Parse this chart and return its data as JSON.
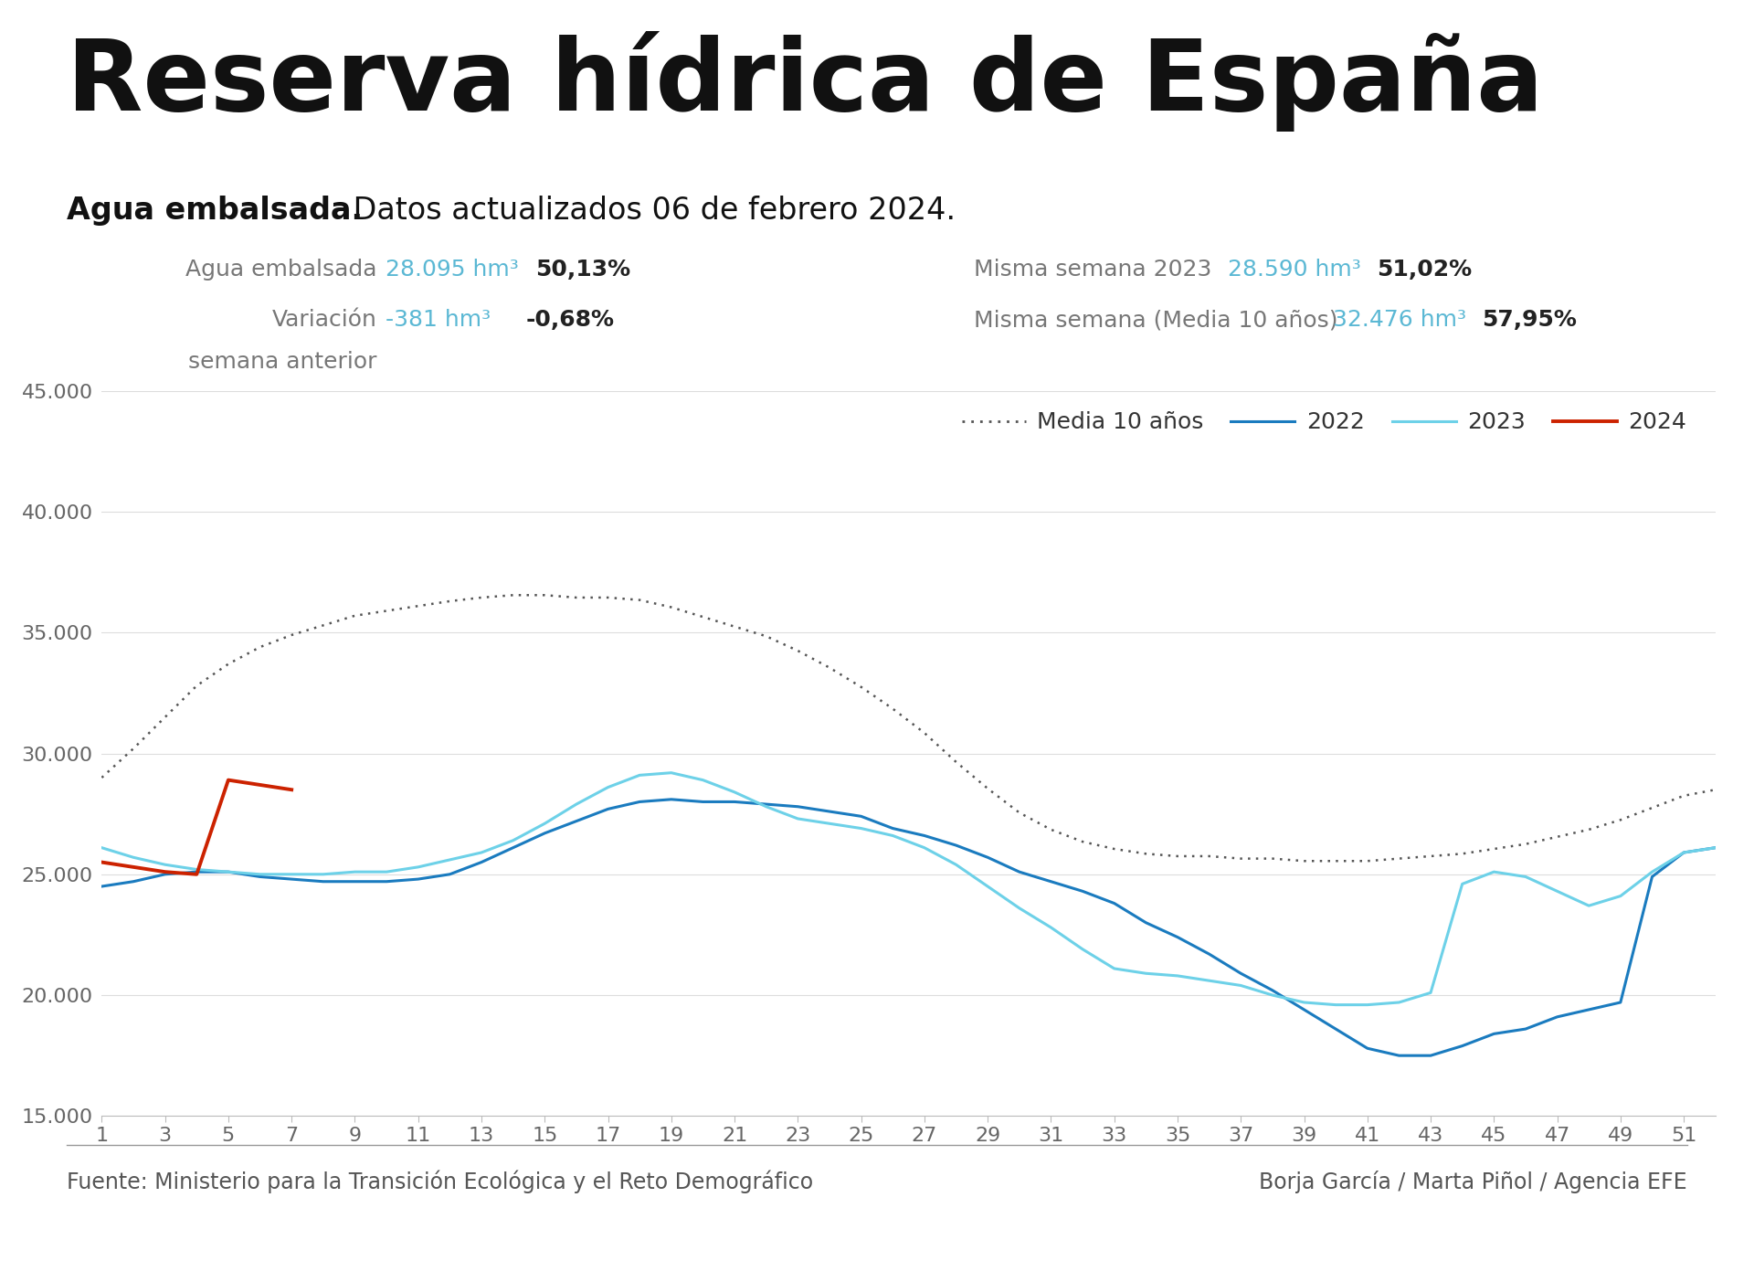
{
  "title": "Reserva hídrica de España",
  "subtitle_bold": "Agua embalsada.",
  "subtitle_normal": " Datos actualizados 06 de febrero 2024.",
  "bg_color": "#FFFFFF",
  "weeks": [
    1,
    2,
    3,
    4,
    5,
    6,
    7,
    8,
    9,
    10,
    11,
    12,
    13,
    14,
    15,
    16,
    17,
    18,
    19,
    20,
    21,
    22,
    23,
    24,
    25,
    26,
    27,
    28,
    29,
    30,
    31,
    32,
    33,
    34,
    35,
    36,
    37,
    38,
    39,
    40,
    41,
    42,
    43,
    44,
    45,
    46,
    47,
    48,
    49,
    50,
    51,
    52
  ],
  "media10": [
    29000,
    30200,
    31500,
    32800,
    33700,
    34400,
    34900,
    35300,
    35700,
    35900,
    36100,
    36300,
    36450,
    36550,
    36550,
    36450,
    36450,
    36350,
    36050,
    35650,
    35250,
    34850,
    34250,
    33550,
    32750,
    31850,
    30850,
    29650,
    28550,
    27550,
    26850,
    26350,
    26050,
    25850,
    25750,
    25750,
    25650,
    25650,
    25550,
    25550,
    25550,
    25650,
    25750,
    25850,
    26050,
    26250,
    26550,
    26850,
    27250,
    27750,
    28250,
    28500
  ],
  "y2022": [
    24500,
    24700,
    25000,
    25100,
    25100,
    24900,
    24800,
    24700,
    24700,
    24700,
    24800,
    25000,
    25500,
    26100,
    26700,
    27200,
    27700,
    28000,
    28100,
    28000,
    28000,
    27900,
    27800,
    27600,
    27400,
    26900,
    26600,
    26200,
    25700,
    25100,
    24700,
    24300,
    23800,
    23000,
    22400,
    21700,
    20900,
    20200,
    19400,
    18600,
    17800,
    17500,
    17500,
    17900,
    18400,
    18600,
    19100,
    19400,
    19700,
    24900,
    25900,
    26100
  ],
  "y2023": [
    26100,
    25700,
    25400,
    25200,
    25100,
    25000,
    25000,
    25000,
    25100,
    25100,
    25300,
    25600,
    25900,
    26400,
    27100,
    27900,
    28600,
    29100,
    29200,
    28900,
    28400,
    27800,
    27300,
    27100,
    26900,
    26600,
    26100,
    25400,
    24500,
    23600,
    22800,
    21900,
    21100,
    20900,
    20800,
    20600,
    20400,
    20000,
    19700,
    19600,
    19600,
    19700,
    20100,
    24600,
    25100,
    24900,
    24300,
    23700,
    24100,
    25100,
    25900,
    26100
  ],
  "y2024": [
    25500,
    25300,
    25100,
    25000,
    28900,
    28700,
    28500,
    null,
    null,
    null,
    null,
    null,
    null,
    null,
    null,
    null,
    null,
    null,
    null,
    null,
    null,
    null,
    null,
    null,
    null,
    null,
    null,
    null,
    null,
    null,
    null,
    null,
    null,
    null,
    null,
    null,
    null,
    null,
    null,
    null,
    null,
    null,
    null,
    null,
    null,
    null,
    null,
    null,
    null,
    null,
    null,
    null
  ],
  "ylim": [
    15000,
    45000
  ],
  "yticks": [
    15000,
    20000,
    25000,
    30000,
    35000,
    40000,
    45000
  ],
  "ytick_labels": [
    "15.000",
    "20.000",
    "25.000",
    "30.000",
    "35.000",
    "40.000",
    "45.000"
  ],
  "xticks": [
    1,
    3,
    5,
    7,
    9,
    11,
    13,
    15,
    17,
    19,
    21,
    23,
    25,
    27,
    29,
    31,
    33,
    35,
    37,
    39,
    41,
    43,
    45,
    47,
    49,
    51
  ],
  "color_media10": "#555555",
  "color_2022": "#1A7BBF",
  "color_2023": "#6DD1E8",
  "color_2024": "#CC2200",
  "footer_left": "Fuente: Ministerio para la Transición Ecológica y el Reto Demográfico",
  "footer_right": "Borja García / Marta Piñol / Agencia EFE",
  "label_color": "#777777",
  "value_cyan": "#5BB8D4",
  "value_bold_color": "#222222"
}
